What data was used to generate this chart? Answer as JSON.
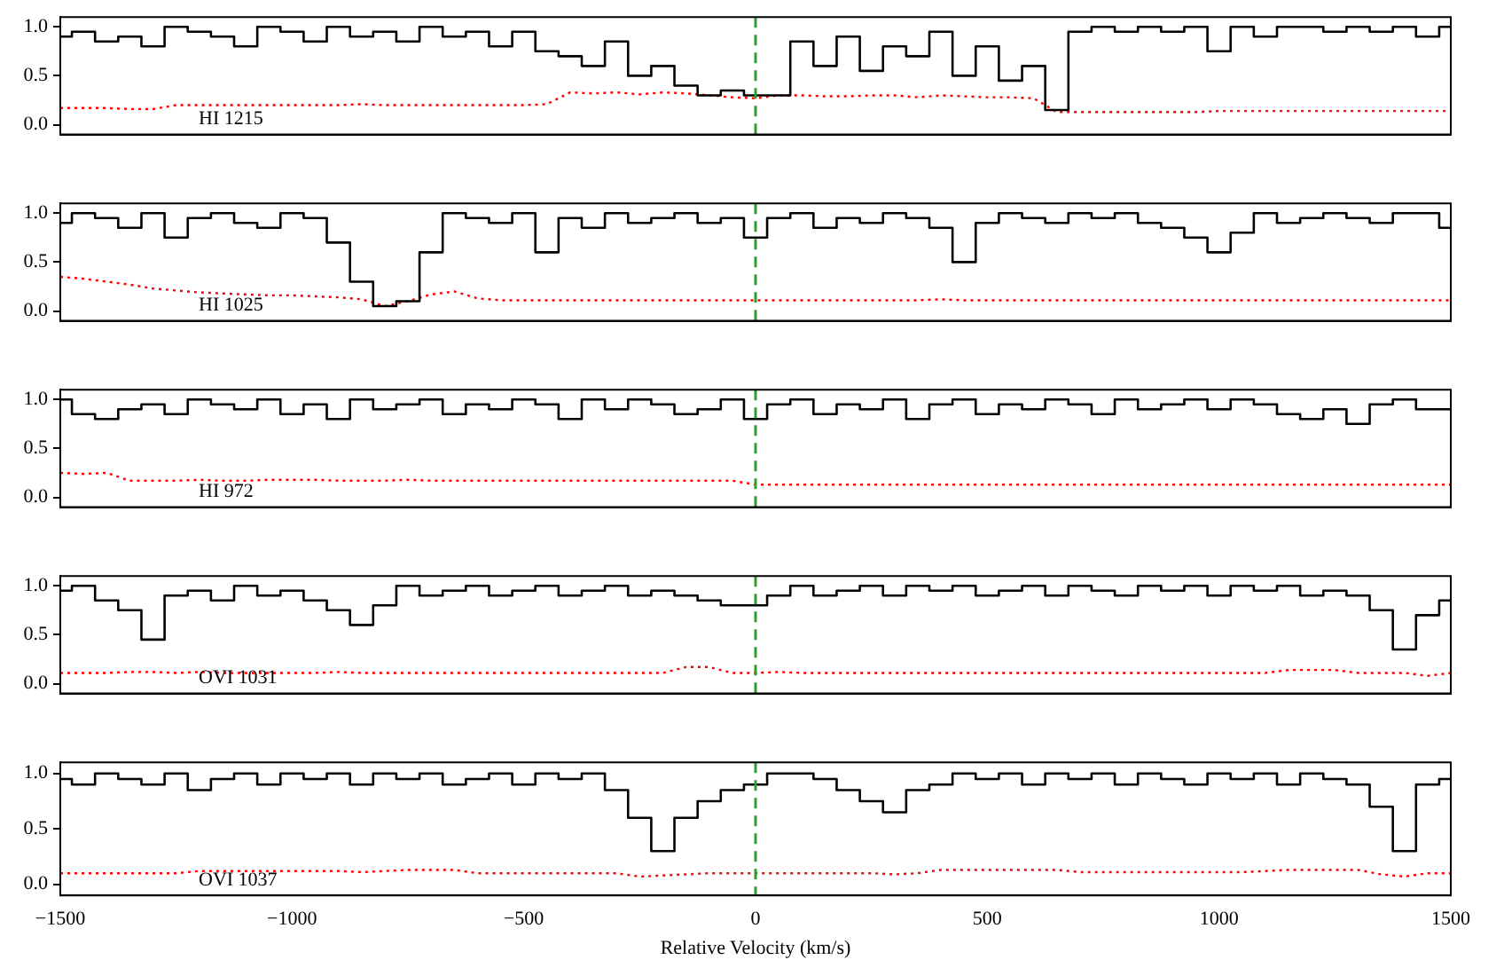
{
  "chart_data": [
    {
      "type": "step",
      "annotations": [
        "HI 1215"
      ],
      "xlim": [
        -1500,
        1500
      ],
      "xticks": [
        -1500,
        -1000,
        -500,
        0,
        500,
        1000,
        1500
      ],
      "ylim": [
        -0.1,
        1.1
      ],
      "yticks": [
        {
          "value": 0,
          "label": "0.0"
        },
        {
          "value": 0.5,
          "label": "0.5"
        },
        {
          "value": 1,
          "label": "1.0"
        }
      ],
      "tick_labels": "y",
      "grid": false,
      "ref_lines": [
        {
          "axis": "x",
          "value": 0,
          "color": "#2ca02c",
          "line_style": "dashed"
        }
      ],
      "x": [
        -1500,
        -1450,
        -1400,
        -1350,
        -1300,
        -1250,
        -1200,
        -1150,
        -1100,
        -1050,
        -1000,
        -950,
        -900,
        -850,
        -800,
        -750,
        -700,
        -650,
        -600,
        -550,
        -500,
        -450,
        -400,
        -350,
        -300,
        -250,
        -200,
        -150,
        -100,
        -50,
        0,
        50,
        100,
        150,
        200,
        250,
        300,
        350,
        400,
        450,
        500,
        550,
        600,
        650,
        700,
        750,
        800,
        850,
        900,
        950,
        1000,
        1050,
        1100,
        1150,
        1200,
        1250,
        1300,
        1350,
        1400,
        1450,
        1500
      ],
      "series": [
        {
          "type": "step",
          "color": "#000000",
          "line_style": "solid",
          "values": [
            0.9,
            0.95,
            0.85,
            0.9,
            0.8,
            1.0,
            0.95,
            0.9,
            0.8,
            1.0,
            0.95,
            0.85,
            1.0,
            0.9,
            0.95,
            0.85,
            1.0,
            0.9,
            0.95,
            0.8,
            0.95,
            0.75,
            0.7,
            0.6,
            0.85,
            0.5,
            0.6,
            0.4,
            0.3,
            0.35,
            0.3,
            0.3,
            0.85,
            0.6,
            0.9,
            0.55,
            0.8,
            0.7,
            0.95,
            0.5,
            0.8,
            0.45,
            0.6,
            0.15,
            0.95,
            1.0,
            0.95,
            1.0,
            0.95,
            1.0,
            0.75,
            1.0,
            0.9,
            1.0,
            1.0,
            0.95,
            1.0,
            0.95,
            1.0,
            0.9,
            1.0
          ]
        },
        {
          "type": "line",
          "color": "#ff0000",
          "line_style": "dotted",
          "values": [
            0.17,
            0.17,
            0.17,
            0.16,
            0.16,
            0.2,
            0.2,
            0.2,
            0.2,
            0.2,
            0.2,
            0.2,
            0.2,
            0.21,
            0.2,
            0.2,
            0.2,
            0.2,
            0.2,
            0.2,
            0.2,
            0.21,
            0.33,
            0.32,
            0.33,
            0.31,
            0.33,
            0.32,
            0.3,
            0.28,
            0.27,
            0.3,
            0.3,
            0.29,
            0.29,
            0.3,
            0.3,
            0.28,
            0.3,
            0.29,
            0.28,
            0.28,
            0.27,
            0.13,
            0.13,
            0.13,
            0.13,
            0.13,
            0.13,
            0.13,
            0.14,
            0.14,
            0.14,
            0.14,
            0.14,
            0.14,
            0.14,
            0.14,
            0.14,
            0.14,
            0.14
          ]
        }
      ]
    },
    {
      "type": "step",
      "annotations": [
        "HI 1025"
      ],
      "xlim": [
        -1500,
        1500
      ],
      "xticks": [
        -1500,
        -1000,
        -500,
        0,
        500,
        1000,
        1500
      ],
      "ylim": [
        -0.1,
        1.1
      ],
      "yticks": [
        {
          "value": 0,
          "label": "0.0"
        },
        {
          "value": 0.5,
          "label": "0.5"
        },
        {
          "value": 1,
          "label": "1.0"
        }
      ],
      "tick_labels": "y",
      "grid": false,
      "ref_lines": [
        {
          "axis": "x",
          "value": 0,
          "color": "#2ca02c",
          "line_style": "dashed"
        }
      ],
      "x": [
        -1500,
        -1450,
        -1400,
        -1350,
        -1300,
        -1250,
        -1200,
        -1150,
        -1100,
        -1050,
        -1000,
        -950,
        -900,
        -850,
        -800,
        -750,
        -700,
        -650,
        -600,
        -550,
        -500,
        -450,
        -400,
        -350,
        -300,
        -250,
        -200,
        -150,
        -100,
        -50,
        0,
        50,
        100,
        150,
        200,
        250,
        300,
        350,
        400,
        450,
        500,
        550,
        600,
        650,
        700,
        750,
        800,
        850,
        900,
        950,
        1000,
        1050,
        1100,
        1150,
        1200,
        1250,
        1300,
        1350,
        1400,
        1450,
        1500
      ],
      "series": [
        {
          "type": "step",
          "color": "#000000",
          "line_style": "solid",
          "values": [
            0.9,
            1.0,
            0.95,
            0.85,
            1.0,
            0.75,
            0.95,
            1.0,
            0.9,
            0.85,
            1.0,
            0.95,
            0.7,
            0.3,
            0.05,
            0.1,
            0.6,
            1.0,
            0.95,
            0.9,
            1.0,
            0.6,
            0.95,
            0.85,
            1.0,
            0.9,
            0.95,
            1.0,
            0.9,
            0.95,
            0.75,
            0.95,
            1.0,
            0.85,
            0.95,
            0.9,
            1.0,
            0.95,
            0.85,
            0.5,
            0.9,
            1.0,
            0.95,
            0.9,
            1.0,
            0.95,
            1.0,
            0.9,
            0.85,
            0.75,
            0.6,
            0.8,
            1.0,
            0.9,
            0.95,
            1.0,
            0.95,
            0.9,
            1.0,
            1.0,
            0.85
          ]
        },
        {
          "type": "line",
          "color": "#ff0000",
          "line_style": "dotted",
          "values": [
            0.35,
            0.33,
            0.3,
            0.27,
            0.23,
            0.21,
            0.19,
            0.18,
            0.17,
            0.16,
            0.16,
            0.15,
            0.14,
            0.12,
            0.05,
            0.1,
            0.17,
            0.2,
            0.13,
            0.11,
            0.11,
            0.11,
            0.11,
            0.11,
            0.11,
            0.11,
            0.11,
            0.11,
            0.11,
            0.11,
            0.11,
            0.11,
            0.11,
            0.11,
            0.11,
            0.11,
            0.11,
            0.11,
            0.12,
            0.11,
            0.11,
            0.11,
            0.11,
            0.11,
            0.11,
            0.11,
            0.11,
            0.11,
            0.11,
            0.11,
            0.11,
            0.11,
            0.11,
            0.11,
            0.11,
            0.11,
            0.11,
            0.11,
            0.11,
            0.11,
            0.11
          ]
        }
      ]
    },
    {
      "type": "step",
      "annotations": [
        "HI 972"
      ],
      "xlim": [
        -1500,
        1500
      ],
      "xticks": [
        -1500,
        -1000,
        -500,
        0,
        500,
        1000,
        1500
      ],
      "ylim": [
        -0.1,
        1.1
      ],
      "yticks": [
        {
          "value": 0,
          "label": "0.0"
        },
        {
          "value": 0.5,
          "label": "0.5"
        },
        {
          "value": 1,
          "label": "1.0"
        }
      ],
      "tick_labels": "y",
      "grid": false,
      "ref_lines": [
        {
          "axis": "x",
          "value": 0,
          "color": "#2ca02c",
          "line_style": "dashed"
        }
      ],
      "x": [
        -1500,
        -1450,
        -1400,
        -1350,
        -1300,
        -1250,
        -1200,
        -1150,
        -1100,
        -1050,
        -1000,
        -950,
        -900,
        -850,
        -800,
        -750,
        -700,
        -650,
        -600,
        -550,
        -500,
        -450,
        -400,
        -350,
        -300,
        -250,
        -200,
        -150,
        -100,
        -50,
        0,
        50,
        100,
        150,
        200,
        250,
        300,
        350,
        400,
        450,
        500,
        550,
        600,
        650,
        700,
        750,
        800,
        850,
        900,
        950,
        1000,
        1050,
        1100,
        1150,
        1200,
        1250,
        1300,
        1350,
        1400,
        1450,
        1500
      ],
      "series": [
        {
          "type": "step",
          "color": "#000000",
          "line_style": "solid",
          "values": [
            1.0,
            0.85,
            0.8,
            0.9,
            0.95,
            0.85,
            1.0,
            0.95,
            0.9,
            1.0,
            0.85,
            0.95,
            0.8,
            1.0,
            0.9,
            0.95,
            1.0,
            0.85,
            0.95,
            0.9,
            1.0,
            0.95,
            0.8,
            1.0,
            0.9,
            1.0,
            0.95,
            0.85,
            0.9,
            1.0,
            0.8,
            0.95,
            1.0,
            0.85,
            0.95,
            0.9,
            1.0,
            0.8,
            0.95,
            1.0,
            0.85,
            0.95,
            0.9,
            1.0,
            0.95,
            0.85,
            1.0,
            0.9,
            0.95,
            1.0,
            0.9,
            1.0,
            0.95,
            0.85,
            0.8,
            0.9,
            0.75,
            0.95,
            1.0,
            0.9,
            0.9
          ]
        },
        {
          "type": "line",
          "color": "#ff0000",
          "line_style": "dotted",
          "values": [
            0.25,
            0.24,
            0.25,
            0.17,
            0.17,
            0.17,
            0.18,
            0.17,
            0.17,
            0.18,
            0.18,
            0.18,
            0.17,
            0.17,
            0.17,
            0.18,
            0.17,
            0.17,
            0.17,
            0.17,
            0.17,
            0.17,
            0.17,
            0.17,
            0.17,
            0.17,
            0.17,
            0.17,
            0.17,
            0.17,
            0.13,
            0.13,
            0.13,
            0.13,
            0.13,
            0.13,
            0.13,
            0.13,
            0.13,
            0.13,
            0.13,
            0.13,
            0.13,
            0.13,
            0.13,
            0.13,
            0.13,
            0.13,
            0.13,
            0.13,
            0.13,
            0.13,
            0.13,
            0.13,
            0.13,
            0.13,
            0.13,
            0.13,
            0.13,
            0.13,
            0.13
          ]
        }
      ]
    },
    {
      "type": "step",
      "annotations": [
        "OVI 1031"
      ],
      "xlim": [
        -1500,
        1500
      ],
      "xticks": [
        -1500,
        -1000,
        -500,
        0,
        500,
        1000,
        1500
      ],
      "ylim": [
        -0.1,
        1.1
      ],
      "yticks": [
        {
          "value": 0,
          "label": "0.0"
        },
        {
          "value": 0.5,
          "label": "0.5"
        },
        {
          "value": 1,
          "label": "1.0"
        }
      ],
      "tick_labels": "y",
      "grid": false,
      "ref_lines": [
        {
          "axis": "x",
          "value": 0,
          "color": "#2ca02c",
          "line_style": "dashed"
        }
      ],
      "x": [
        -1500,
        -1450,
        -1400,
        -1350,
        -1300,
        -1250,
        -1200,
        -1150,
        -1100,
        -1050,
        -1000,
        -950,
        -900,
        -850,
        -800,
        -750,
        -700,
        -650,
        -600,
        -550,
        -500,
        -450,
        -400,
        -350,
        -300,
        -250,
        -200,
        -150,
        -100,
        -50,
        0,
        50,
        100,
        150,
        200,
        250,
        300,
        350,
        400,
        450,
        500,
        550,
        600,
        650,
        700,
        750,
        800,
        850,
        900,
        950,
        1000,
        1050,
        1100,
        1150,
        1200,
        1250,
        1300,
        1350,
        1400,
        1450,
        1500
      ],
      "series": [
        {
          "type": "step",
          "color": "#000000",
          "line_style": "solid",
          "values": [
            0.95,
            1.0,
            0.85,
            0.75,
            0.45,
            0.9,
            0.95,
            0.85,
            1.0,
            0.9,
            0.95,
            0.85,
            0.75,
            0.6,
            0.8,
            1.0,
            0.9,
            0.95,
            1.0,
            0.9,
            0.95,
            1.0,
            0.9,
            0.95,
            1.0,
            0.9,
            0.95,
            0.9,
            0.85,
            0.8,
            0.8,
            0.9,
            1.0,
            0.9,
            0.95,
            1.0,
            0.9,
            1.0,
            0.95,
            1.0,
            0.9,
            0.95,
            1.0,
            0.9,
            1.0,
            0.95,
            0.9,
            1.0,
            0.95,
            1.0,
            0.9,
            1.0,
            0.95,
            1.0,
            0.9,
            0.95,
            0.9,
            0.75,
            0.35,
            0.7,
            0.85
          ]
        },
        {
          "type": "line",
          "color": "#ff0000",
          "line_style": "dotted",
          "values": [
            0.11,
            0.11,
            0.11,
            0.12,
            0.12,
            0.11,
            0.12,
            0.11,
            0.11,
            0.11,
            0.11,
            0.11,
            0.12,
            0.11,
            0.11,
            0.11,
            0.11,
            0.11,
            0.11,
            0.11,
            0.11,
            0.11,
            0.11,
            0.11,
            0.11,
            0.11,
            0.11,
            0.17,
            0.17,
            0.11,
            0.11,
            0.12,
            0.11,
            0.11,
            0.11,
            0.11,
            0.11,
            0.11,
            0.11,
            0.11,
            0.11,
            0.11,
            0.11,
            0.11,
            0.11,
            0.11,
            0.11,
            0.11,
            0.11,
            0.11,
            0.11,
            0.11,
            0.11,
            0.14,
            0.14,
            0.14,
            0.11,
            0.11,
            0.11,
            0.08,
            0.11
          ]
        }
      ]
    },
    {
      "type": "step",
      "annotations": [
        "OVI 1037"
      ],
      "xlabel": "Relative Velocity (km/s)",
      "xlim": [
        -1500,
        1500
      ],
      "xticks": [
        {
          "value": -1500,
          "label": "−1500"
        },
        {
          "value": -1000,
          "label": "−1000"
        },
        {
          "value": -500,
          "label": "−500"
        },
        0,
        500,
        1000,
        1500
      ],
      "ylim": [
        -0.1,
        1.1
      ],
      "yticks": [
        {
          "value": 0,
          "label": "0.0"
        },
        {
          "value": 0.5,
          "label": "0.5"
        },
        {
          "value": 1,
          "label": "1.0"
        }
      ],
      "grid": false,
      "ref_lines": [
        {
          "axis": "x",
          "value": 0,
          "color": "#2ca02c",
          "line_style": "dashed"
        }
      ],
      "x": [
        -1500,
        -1450,
        -1400,
        -1350,
        -1300,
        -1250,
        -1200,
        -1150,
        -1100,
        -1050,
        -1000,
        -950,
        -900,
        -850,
        -800,
        -750,
        -700,
        -650,
        -600,
        -550,
        -500,
        -450,
        -400,
        -350,
        -300,
        -250,
        -200,
        -150,
        -100,
        -50,
        0,
        50,
        100,
        150,
        200,
        250,
        300,
        350,
        400,
        450,
        500,
        550,
        600,
        650,
        700,
        750,
        800,
        850,
        900,
        950,
        1000,
        1050,
        1100,
        1150,
        1200,
        1250,
        1300,
        1350,
        1400,
        1450,
        1500
      ],
      "series": [
        {
          "type": "step",
          "color": "#000000",
          "line_style": "solid",
          "values": [
            0.95,
            0.9,
            1.0,
            0.95,
            0.9,
            1.0,
            0.85,
            0.95,
            1.0,
            0.9,
            1.0,
            0.95,
            1.0,
            0.9,
            1.0,
            0.95,
            1.0,
            0.9,
            0.95,
            1.0,
            0.9,
            1.0,
            0.95,
            1.0,
            0.85,
            0.6,
            0.3,
            0.6,
            0.75,
            0.85,
            0.9,
            1.0,
            1.0,
            0.95,
            0.85,
            0.75,
            0.65,
            0.85,
            0.9,
            1.0,
            0.95,
            1.0,
            0.9,
            1.0,
            0.95,
            1.0,
            0.9,
            1.0,
            0.95,
            0.9,
            1.0,
            0.95,
            1.0,
            0.9,
            1.0,
            0.95,
            0.9,
            0.7,
            0.3,
            0.9,
            0.95
          ]
        },
        {
          "type": "line",
          "color": "#ff0000",
          "line_style": "dotted",
          "values": [
            0.1,
            0.1,
            0.1,
            0.1,
            0.1,
            0.1,
            0.12,
            0.12,
            0.12,
            0.12,
            0.12,
            0.12,
            0.12,
            0.11,
            0.12,
            0.13,
            0.13,
            0.13,
            0.1,
            0.1,
            0.1,
            0.1,
            0.1,
            0.1,
            0.1,
            0.07,
            0.08,
            0.09,
            0.1,
            0.1,
            0.1,
            0.1,
            0.1,
            0.1,
            0.1,
            0.1,
            0.09,
            0.1,
            0.13,
            0.13,
            0.13,
            0.13,
            0.13,
            0.13,
            0.11,
            0.11,
            0.11,
            0.11,
            0.11,
            0.11,
            0.11,
            0.11,
            0.12,
            0.13,
            0.13,
            0.13,
            0.13,
            0.09,
            0.07,
            0.1,
            0.1
          ]
        }
      ]
    }
  ]
}
